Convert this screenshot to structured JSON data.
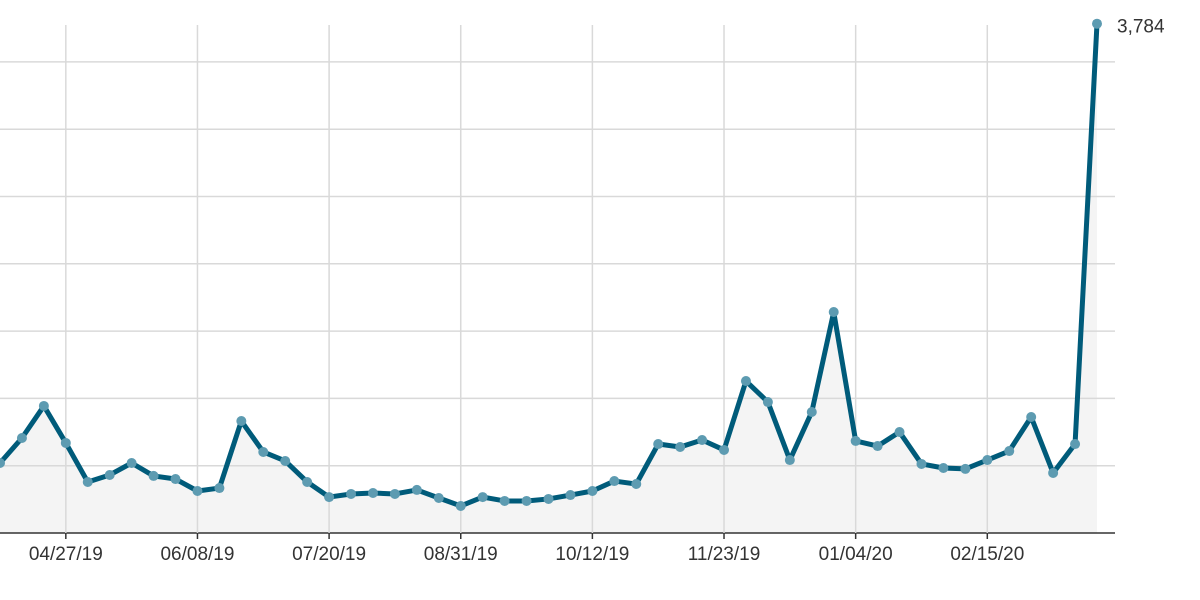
{
  "chart_data": {
    "type": "line",
    "categories": [
      null,
      null,
      null,
      "04/27/19",
      null,
      null,
      null,
      null,
      null,
      "06/08/19",
      null,
      null,
      null,
      null,
      null,
      "07/20/19",
      null,
      null,
      null,
      null,
      null,
      "08/31/19",
      null,
      null,
      null,
      null,
      null,
      "10/12/19",
      null,
      null,
      null,
      null,
      null,
      "11/23/19",
      null,
      null,
      null,
      null,
      null,
      "01/04/20",
      null,
      null,
      null,
      null,
      null,
      "02/15/20",
      null,
      null,
      null,
      null,
      null
    ],
    "series": [
      {
        "color": "#005b7a",
        "marker_color": "#5d9bb1",
        "fill": "#f4f4f4",
        "values": [
          520,
          706,
          944,
          669,
          379,
          431,
          520,
          424,
          401,
          312,
          334,
          832,
          602,
          535,
          379,
          267,
          290,
          297,
          290,
          320,
          260,
          201,
          267,
          238,
          238,
          253,
          282,
          312,
          386,
          364,
          661,
          639,
          691,
          617,
          1129,
          973,
          542,
          899,
          1642,
          684,
          646,
          750,
          513,
          483,
          476,
          542,
          609,
          862,
          446,
          661,
          3784
        ],
        "value_labels": [
          null,
          null,
          null,
          null,
          null,
          null,
          null,
          null,
          null,
          null,
          null,
          null,
          null,
          null,
          null,
          null,
          null,
          null,
          null,
          null,
          null,
          null,
          null,
          null,
          null,
          null,
          null,
          null,
          null,
          null,
          null,
          null,
          null,
          null,
          null,
          null,
          null,
          null,
          null,
          null,
          null,
          null,
          null,
          null,
          null,
          null,
          null,
          null,
          null,
          null,
          "3,784"
        ]
      }
    ],
    "ylim": [
      0,
      3960
    ],
    "yticks": [
      0,
      500,
      1000,
      1500,
      2000,
      2500,
      3000,
      3500
    ],
    "grid": true
  }
}
